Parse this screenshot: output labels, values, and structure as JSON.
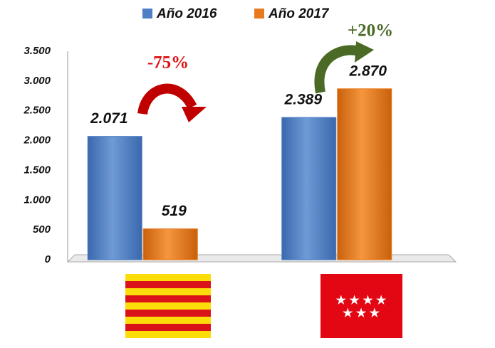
{
  "chart_data": {
    "type": "bar",
    "categories": [
      null,
      null
    ],
    "series": [
      {
        "name": "Año 2016",
        "color": "#4f7fc4",
        "values": [
          2071,
          2389
        ],
        "value_labels": [
          "2.071",
          "2.389"
        ]
      },
      {
        "name": "Año 2017",
        "color": "#e87a1e",
        "values": [
          519,
          2870
        ],
        "value_labels": [
          "519",
          "2.870"
        ]
      }
    ],
    "annotations": [
      "-75%",
      "+20%"
    ],
    "ylim": [
      0,
      3500
    ],
    "yticks": [
      0,
      500,
      {
        "value": 1000,
        "label": "1.000"
      },
      {
        "value": 1500,
        "label": "1.500"
      },
      {
        "value": 2000,
        "label": "2.000"
      },
      {
        "value": 2500,
        "label": "2.500"
      },
      {
        "value": 3000,
        "label": "3.000"
      },
      {
        "value": 3500,
        "label": "3.500"
      }
    ],
    "grid": false
  }
}
